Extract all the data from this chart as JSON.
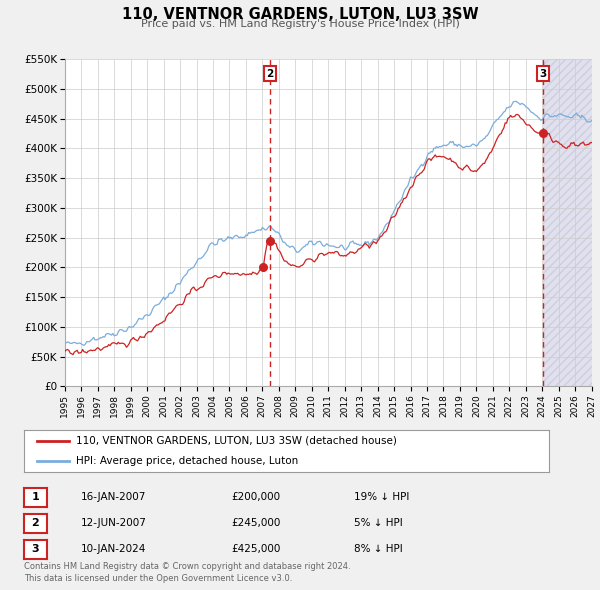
{
  "title": "110, VENTNOR GARDENS, LUTON, LU3 3SW",
  "subtitle": "Price paid vs. HM Land Registry's House Price Index (HPI)",
  "xlim": [
    1995,
    2027
  ],
  "ylim": [
    0,
    550000
  ],
  "yticks": [
    0,
    50000,
    100000,
    150000,
    200000,
    250000,
    300000,
    350000,
    400000,
    450000,
    500000,
    550000
  ],
  "ytick_labels": [
    "£0",
    "£50K",
    "£100K",
    "£150K",
    "£200K",
    "£250K",
    "£300K",
    "£350K",
    "£400K",
    "£450K",
    "£500K",
    "£550K"
  ],
  "xticks": [
    1995,
    1996,
    1997,
    1998,
    1999,
    2000,
    2001,
    2002,
    2003,
    2004,
    2005,
    2006,
    2007,
    2008,
    2009,
    2010,
    2011,
    2012,
    2013,
    2014,
    2015,
    2016,
    2017,
    2018,
    2019,
    2020,
    2021,
    2022,
    2023,
    2024,
    2025,
    2026,
    2027
  ],
  "hpi_color": "#7aaddc",
  "price_color": "#cc2222",
  "sale_dot_color": "#cc2222",
  "background_color": "#f0f0f0",
  "plot_bg_color": "#ffffff",
  "grid_color": "#cccccc",
  "sale1_x": 2007.04,
  "sale1_y": 200000,
  "sale2_x": 2007.46,
  "sale2_y": 245000,
  "sale3_x": 2024.04,
  "sale3_y": 425000,
  "vline1_x": 2007.46,
  "vline2_x": 2024.04,
  "legend_text1": "110, VENTNOR GARDENS, LUTON, LU3 3SW (detached house)",
  "legend_text2": "HPI: Average price, detached house, Luton",
  "table_rows": [
    {
      "num": "1",
      "date": "16-JAN-2007",
      "price": "£200,000",
      "hpi": "19% ↓ HPI"
    },
    {
      "num": "2",
      "date": "12-JUN-2007",
      "price": "£245,000",
      "hpi": "5% ↓ HPI"
    },
    {
      "num": "3",
      "date": "10-JAN-2024",
      "price": "£425,000",
      "hpi": "8% ↓ HPI"
    }
  ],
  "footnote": "Contains HM Land Registry data © Crown copyright and database right 2024.\nThis data is licensed under the Open Government Licence v3.0.",
  "shaded_region_start": 2024.04,
  "shaded_region_end": 2027
}
